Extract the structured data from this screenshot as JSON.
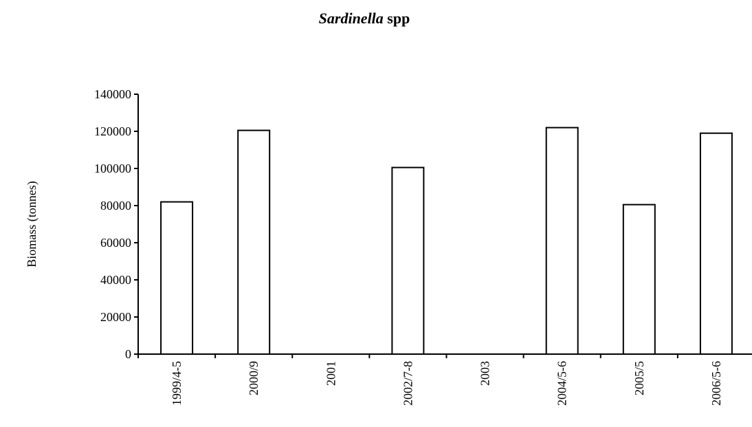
{
  "chart_data": {
    "type": "bar",
    "title_italic": "Sardinella",
    "title_rest": " spp",
    "xlabel": "",
    "ylabel": "Biomass (tonnes)",
    "categories": [
      "1999/4-5",
      "2000/9",
      "2001",
      "2002/7-8",
      "2003",
      "2004/5-6",
      "2005/5",
      "2006/5-6"
    ],
    "values": [
      82000,
      120500,
      0,
      100500,
      0,
      122000,
      80500,
      119000
    ],
    "ylim": [
      0,
      140000
    ],
    "yticks": [
      0,
      20000,
      40000,
      60000,
      80000,
      100000,
      120000,
      140000
    ],
    "grid": false,
    "bar_fill": "#ffffff",
    "bar_stroke": "#000000"
  }
}
